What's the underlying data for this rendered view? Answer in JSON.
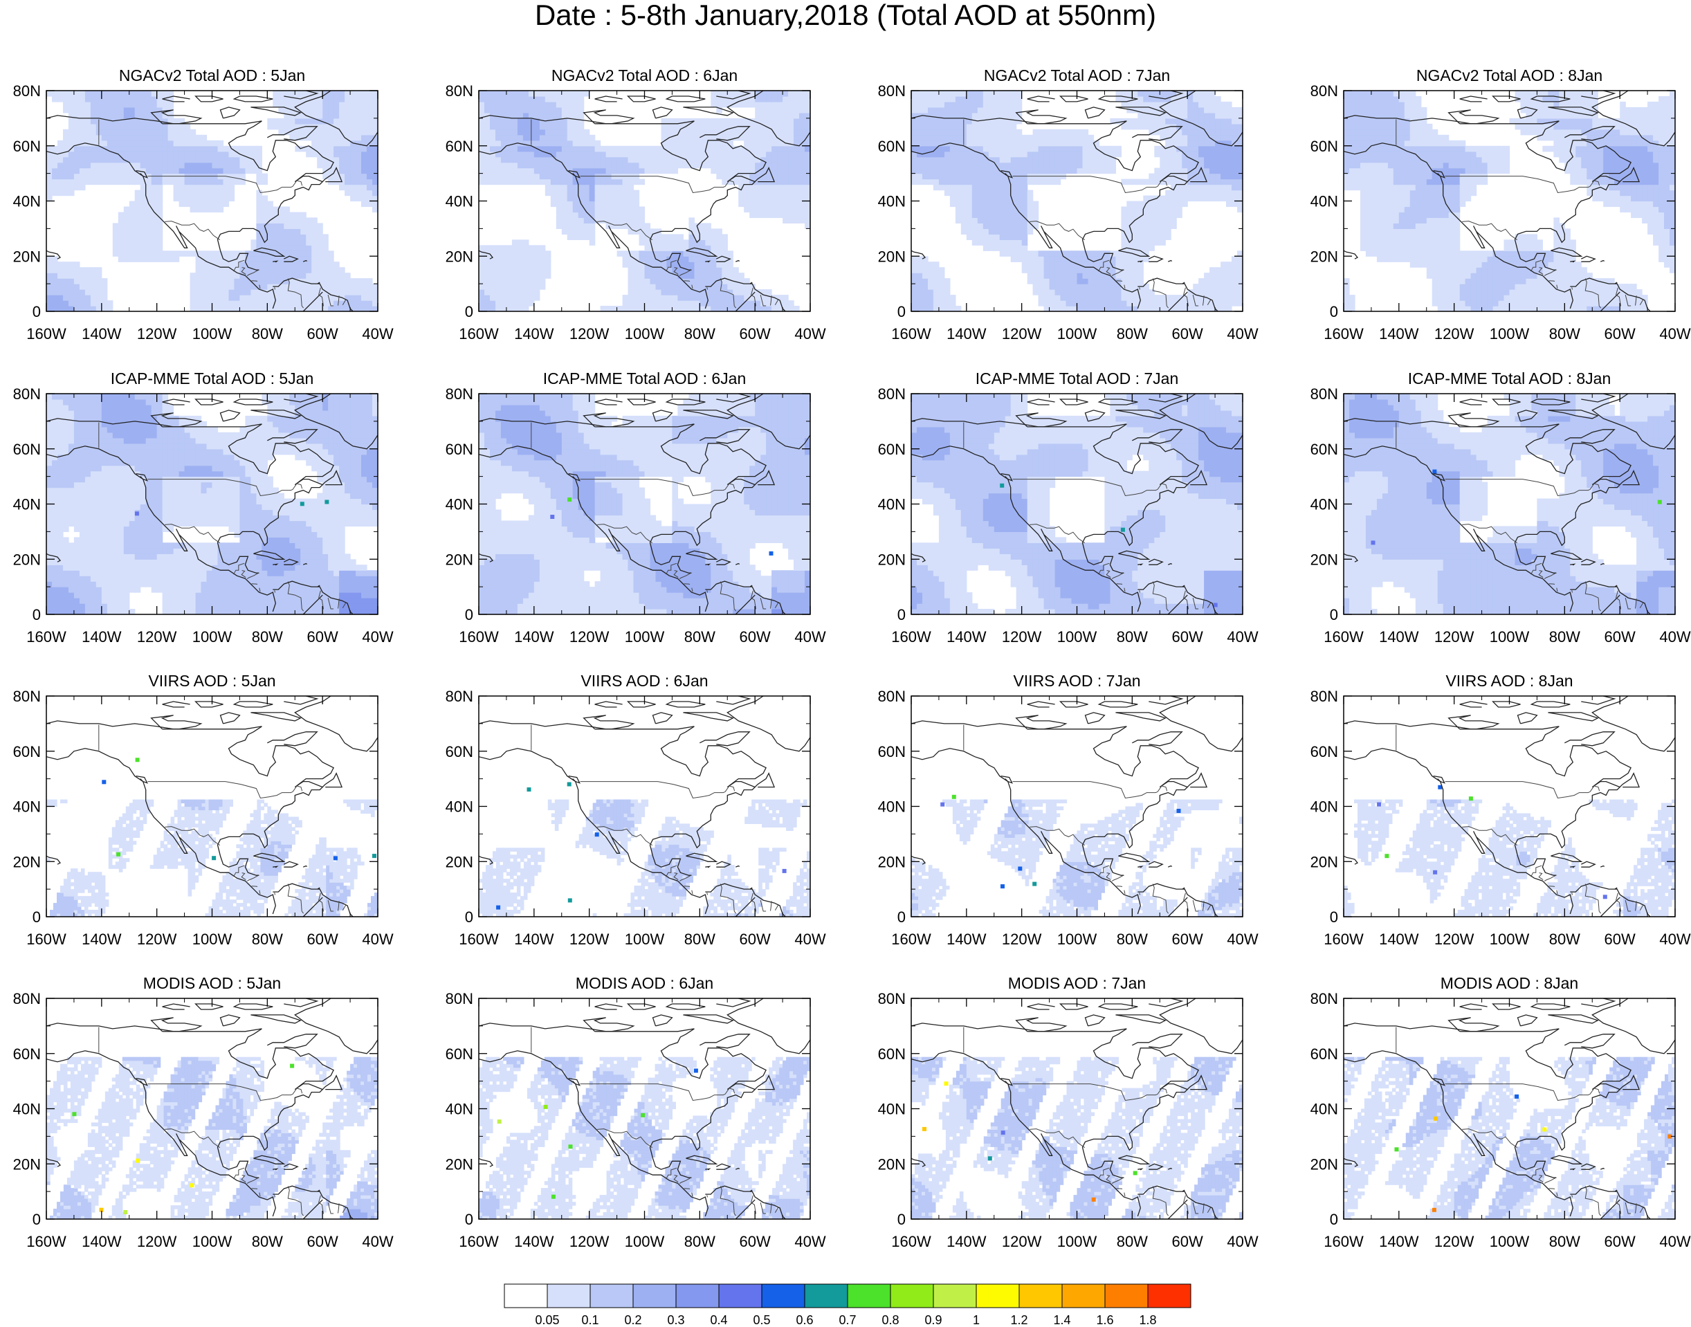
{
  "title": "Date : 5-8th January,2018 (Total AOD at 550nm)",
  "rows": [
    {
      "product": "NGACv2",
      "panels": [
        "NGACv2 Total AOD : 5Jan",
        "NGACv2 Total AOD : 6Jan",
        "NGACv2 Total AOD : 7Jan",
        "NGACv2 Total AOD : 8Jan"
      ]
    },
    {
      "product": "ICAP-MME",
      "panels": [
        "ICAP-MME Total AOD : 5Jan",
        "ICAP-MME Total AOD : 6Jan",
        "ICAP-MME Total AOD : 7Jan",
        "ICAP-MME Total AOD : 8Jan"
      ]
    },
    {
      "product": "VIIRS",
      "panels": [
        "VIIRS AOD : 5Jan",
        "VIIRS AOD : 6Jan",
        "VIIRS AOD : 7Jan",
        "VIIRS AOD : 8Jan"
      ]
    },
    {
      "product": "MODIS",
      "panels": [
        "MODIS AOD : 5Jan",
        "MODIS AOD : 6Jan",
        "MODIS AOD : 7Jan",
        "MODIS AOD : 8Jan"
      ]
    }
  ],
  "map": {
    "lon_range": [
      -160,
      -40
    ],
    "lat_range": [
      0,
      80
    ],
    "lon_ticks": [
      {
        "value": -160,
        "label": "160W"
      },
      {
        "value": -140,
        "label": "140W"
      },
      {
        "value": -120,
        "label": "120W"
      },
      {
        "value": -100,
        "label": "100W"
      },
      {
        "value": -80,
        "label": "80W"
      },
      {
        "value": -60,
        "label": "60W"
      },
      {
        "value": -40,
        "label": "40W"
      }
    ],
    "lat_ticks": [
      {
        "value": 0,
        "label": "0"
      },
      {
        "value": 20,
        "label": "20N"
      },
      {
        "value": 40,
        "label": "40N"
      },
      {
        "value": 60,
        "label": "60N"
      },
      {
        "value": 80,
        "label": "80N"
      }
    ]
  },
  "colorbar": {
    "colors": [
      "#ffffff",
      "#d6e0fb",
      "#b9c8f6",
      "#9db0f2",
      "#8398ee",
      "#6474ec",
      "#1561e8",
      "#139a9b",
      "#4ce12b",
      "#90eb18",
      "#c0f047",
      "#fefb00",
      "#fec700",
      "#fea700",
      "#fe7f00",
      "#fe3000"
    ],
    "labels": [
      "0.05",
      "0.1",
      "0.2",
      "0.3",
      "0.4",
      "0.5",
      "0.6",
      "0.7",
      "0.8",
      "0.9",
      "1",
      "1.2",
      "1.4",
      "1.6",
      "1.8"
    ]
  }
}
